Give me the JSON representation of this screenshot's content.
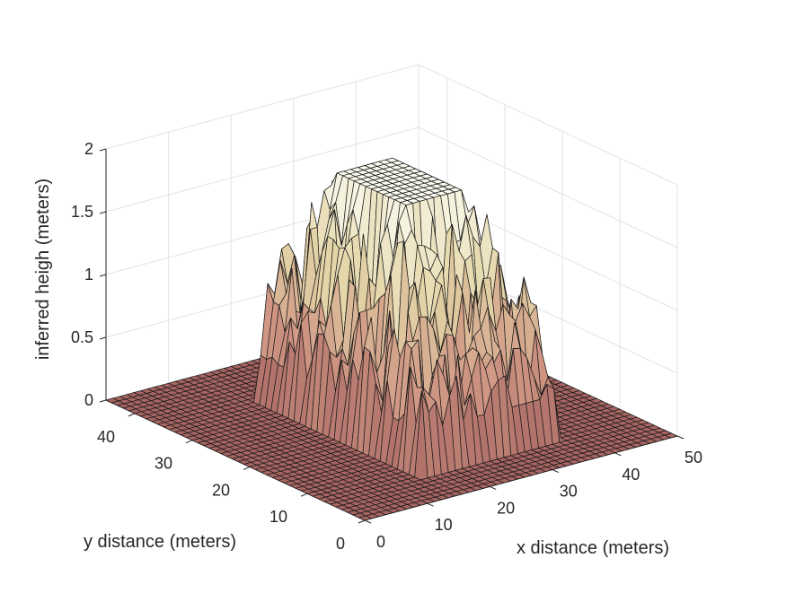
{
  "chart_data": {
    "type": "surface",
    "xlabel": "x distance (meters)",
    "ylabel": "y distance (meters)",
    "zlabel": "inferred heigh (meters)",
    "xlim": [
      0,
      50
    ],
    "ylim": [
      0,
      45
    ],
    "zlim": [
      0,
      2
    ],
    "xticks": [
      "0",
      "10",
      "20",
      "30",
      "40",
      "50"
    ],
    "yticks": [
      "0",
      "10",
      "20",
      "30",
      "40"
    ],
    "zticks": [
      "0",
      "0.5",
      "1",
      "1.5",
      "2"
    ],
    "grid": true,
    "colormap": "pink",
    "surface": {
      "description_values": "Flat ground at height 0 with a single raised block; inner top plateau about 1.85 m tall",
      "base_height": 0,
      "block_x_range": [
        15,
        37
      ],
      "block_y_range": [
        7,
        35
      ],
      "plateau_height": 1.85,
      "plateau_x_range": [
        22,
        32
      ],
      "plateau_y_range": [
        17,
        29
      ],
      "contour_levels": [
        0.35,
        0.8,
        1.2,
        1.55
      ]
    }
  }
}
